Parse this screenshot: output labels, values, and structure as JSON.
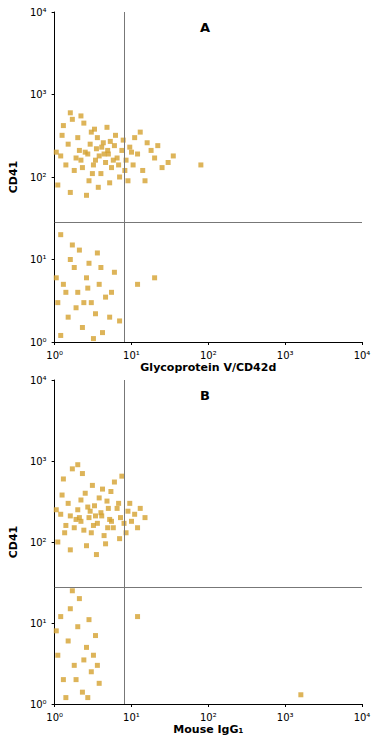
{
  "chart_data": [
    {
      "type": "scatter",
      "title": "A",
      "x_label": "Glycoprotein V/CD42d",
      "y_label": "CD41",
      "log": true,
      "grid": false,
      "color": "#d4a12f",
      "marker": "square",
      "xlim": [
        1,
        10000
      ],
      "ylim": [
        1,
        10000
      ],
      "xticks": [
        {
          "value": 1,
          "label": "10⁰"
        },
        {
          "value": 10,
          "label": "10¹"
        },
        {
          "value": 100,
          "label": "10²"
        },
        {
          "value": 1000,
          "label": "10³"
        },
        {
          "value": 10000,
          "label": "10⁴"
        }
      ],
      "yticks": [
        {
          "value": 1,
          "label": "10⁰"
        },
        {
          "value": 10,
          "label": "10¹"
        },
        {
          "value": 100,
          "label": "10²"
        },
        {
          "value": 1000,
          "label": "10³"
        },
        {
          "value": 10000,
          "label": "10⁴"
        }
      ],
      "quadrant_x": 8,
      "quadrant_y": 28,
      "points": [
        [
          1.2,
          180
        ],
        [
          1.5,
          250
        ],
        [
          1.8,
          120
        ],
        [
          2.0,
          300
        ],
        [
          2.2,
          160
        ],
        [
          2.5,
          200
        ],
        [
          2.8,
          90
        ],
        [
          3.0,
          350
        ],
        [
          3.2,
          140
        ],
        [
          3.5,
          220
        ],
        [
          3.8,
          180
        ],
        [
          4.0,
          110
        ],
        [
          4.3,
          260
        ],
        [
          4.6,
          150
        ],
        [
          5.0,
          190
        ],
        [
          5.5,
          130
        ],
        [
          6.0,
          240
        ],
        [
          6.5,
          170
        ],
        [
          7.0,
          100
        ],
        [
          7.5,
          210
        ],
        [
          8.5,
          160
        ],
        [
          9.5,
          230
        ],
        [
          10.5,
          140
        ],
        [
          12,
          190
        ],
        [
          14,
          120
        ],
        [
          16,
          260
        ],
        [
          20,
          170
        ],
        [
          25,
          130
        ],
        [
          30,
          150
        ],
        [
          80,
          140
        ],
        [
          1.3,
          420
        ],
        [
          1.7,
          500
        ],
        [
          2.4,
          450
        ],
        [
          3.3,
          380
        ],
        [
          4.8,
          400
        ],
        [
          6.2,
          320
        ],
        [
          1.1,
          80
        ],
        [
          1.6,
          65
        ],
        [
          2.6,
          60
        ],
        [
          3.7,
          75
        ],
        [
          5.2,
          85
        ],
        [
          9,
          90
        ],
        [
          11,
          300
        ],
        [
          13,
          350
        ],
        [
          18,
          210
        ],
        [
          1.4,
          140
        ],
        [
          2.1,
          210
        ],
        [
          2.9,
          250
        ],
        [
          3.6,
          300
        ],
        [
          4.4,
          190
        ],
        [
          5.8,
          160
        ],
        [
          7.8,
          280
        ],
        [
          1.9,
          170
        ],
        [
          2.3,
          130
        ],
        [
          3.1,
          110
        ],
        [
          4.1,
          230
        ],
        [
          5.3,
          270
        ],
        [
          6.8,
          140
        ],
        [
          8.2,
          120
        ],
        [
          1.05,
          200
        ],
        [
          1.25,
          320
        ],
        [
          2.7,
          190
        ],
        [
          3.4,
          160
        ],
        [
          4.9,
          210
        ],
        [
          10,
          200
        ],
        [
          22,
          240
        ],
        [
          35,
          180
        ],
        [
          15,
          90
        ],
        [
          1.6,
          600
        ],
        [
          2.2,
          550
        ],
        [
          1.1,
          3
        ],
        [
          1.3,
          5
        ],
        [
          1.5,
          2
        ],
        [
          1.8,
          8
        ],
        [
          2.0,
          4
        ],
        [
          2.3,
          1.5
        ],
        [
          2.6,
          6
        ],
        [
          3.0,
          3
        ],
        [
          3.4,
          2.2
        ],
        [
          3.8,
          5
        ],
        [
          4.2,
          1.3
        ],
        [
          4.6,
          3.5
        ],
        [
          5.2,
          2
        ],
        [
          6.0,
          7
        ],
        [
          7.0,
          1.8
        ],
        [
          1.2,
          1.2
        ],
        [
          1.6,
          10
        ],
        [
          2.1,
          13
        ],
        [
          2.8,
          9
        ],
        [
          3.6,
          12
        ],
        [
          1.4,
          4
        ],
        [
          2.4,
          3
        ],
        [
          3.2,
          1.1
        ],
        [
          4.0,
          8
        ],
        [
          5.5,
          4
        ],
        [
          1.05,
          6
        ],
        [
          1.9,
          2.6
        ],
        [
          2.7,
          4.5
        ],
        [
          12,
          5
        ],
        [
          20,
          6
        ],
        [
          1.2,
          20
        ],
        [
          1.7,
          15
        ]
      ]
    },
    {
      "type": "scatter",
      "title": "B",
      "x_label": "Mouse IgG₁",
      "y_label": "CD41",
      "log": true,
      "grid": false,
      "color": "#d4a12f",
      "marker": "square",
      "xlim": [
        1,
        10000
      ],
      "ylim": [
        1,
        10000
      ],
      "xticks": [
        {
          "value": 1,
          "label": "10⁰"
        },
        {
          "value": 10,
          "label": "10¹"
        },
        {
          "value": 100,
          "label": "10²"
        },
        {
          "value": 1000,
          "label": "10³"
        },
        {
          "value": 10000,
          "label": "10⁴"
        }
      ],
      "yticks": [
        {
          "value": 1,
          "label": "10⁰"
        },
        {
          "value": 10,
          "label": "10¹"
        },
        {
          "value": 100,
          "label": "10²"
        },
        {
          "value": 1000,
          "label": "10³"
        },
        {
          "value": 10000,
          "label": "10⁴"
        }
      ],
      "quadrant_x": 8,
      "quadrant_y": 28,
      "points": [
        [
          1.2,
          220
        ],
        [
          1.5,
          300
        ],
        [
          1.8,
          150
        ],
        [
          2.0,
          250
        ],
        [
          2.2,
          180
        ],
        [
          2.5,
          400
        ],
        [
          2.8,
          200
        ],
        [
          3.0,
          130
        ],
        [
          3.3,
          280
        ],
        [
          3.6,
          170
        ],
        [
          4.0,
          230
        ],
        [
          4.4,
          120
        ],
        [
          4.8,
          320
        ],
        [
          5.2,
          190
        ],
        [
          5.8,
          150
        ],
        [
          6.5,
          260
        ],
        [
          7.2,
          200
        ],
        [
          8.0,
          170
        ],
        [
          9.0,
          240
        ],
        [
          10,
          180
        ],
        [
          12,
          150
        ],
        [
          15,
          200
        ],
        [
          1.3,
          600
        ],
        [
          1.7,
          800
        ],
        [
          2.3,
          700
        ],
        [
          3.1,
          500
        ],
        [
          4.2,
          450
        ],
        [
          6.0,
          550
        ],
        [
          7.5,
          650
        ],
        [
          1.1,
          100
        ],
        [
          1.6,
          80
        ],
        [
          2.6,
          90
        ],
        [
          3.5,
          70
        ],
        [
          4.6,
          95
        ],
        [
          1.4,
          160
        ],
        [
          2.1,
          200
        ],
        [
          2.9,
          240
        ],
        [
          3.8,
          350
        ],
        [
          5.0,
          260
        ],
        [
          6.8,
          300
        ],
        [
          1.9,
          190
        ],
        [
          2.4,
          140
        ],
        [
          3.2,
          160
        ],
        [
          4.1,
          210
        ],
        [
          5.5,
          180
        ],
        [
          8.5,
          130
        ],
        [
          1.05,
          250
        ],
        [
          1.25,
          380
        ],
        [
          2.7,
          270
        ],
        [
          3.4,
          210
        ],
        [
          4.9,
          150
        ],
        [
          11,
          220
        ],
        [
          13,
          260
        ],
        [
          1.6,
          210
        ],
        [
          2.2,
          330
        ],
        [
          5.4,
          420
        ],
        [
          7.0,
          110
        ],
        [
          9.5,
          300
        ],
        [
          1.35,
          130
        ],
        [
          2.0,
          900
        ],
        [
          1.1,
          4
        ],
        [
          1.3,
          2
        ],
        [
          1.5,
          6
        ],
        [
          1.8,
          3
        ],
        [
          2.0,
          9
        ],
        [
          2.3,
          1.4
        ],
        [
          2.6,
          5
        ],
        [
          3.0,
          2.5
        ],
        [
          3.4,
          7
        ],
        [
          3.8,
          1.8
        ],
        [
          1.2,
          12
        ],
        [
          1.6,
          15
        ],
        [
          2.1,
          20
        ],
        [
          2.8,
          11
        ],
        [
          1.4,
          1.2
        ],
        [
          2.4,
          3.5
        ],
        [
          3.2,
          4
        ],
        [
          1.05,
          8
        ],
        [
          1.9,
          2
        ],
        [
          2.7,
          1.2
        ],
        [
          3.6,
          3
        ],
        [
          1.7,
          25
        ],
        [
          12,
          12
        ],
        [
          1600,
          1.3
        ]
      ]
    }
  ]
}
